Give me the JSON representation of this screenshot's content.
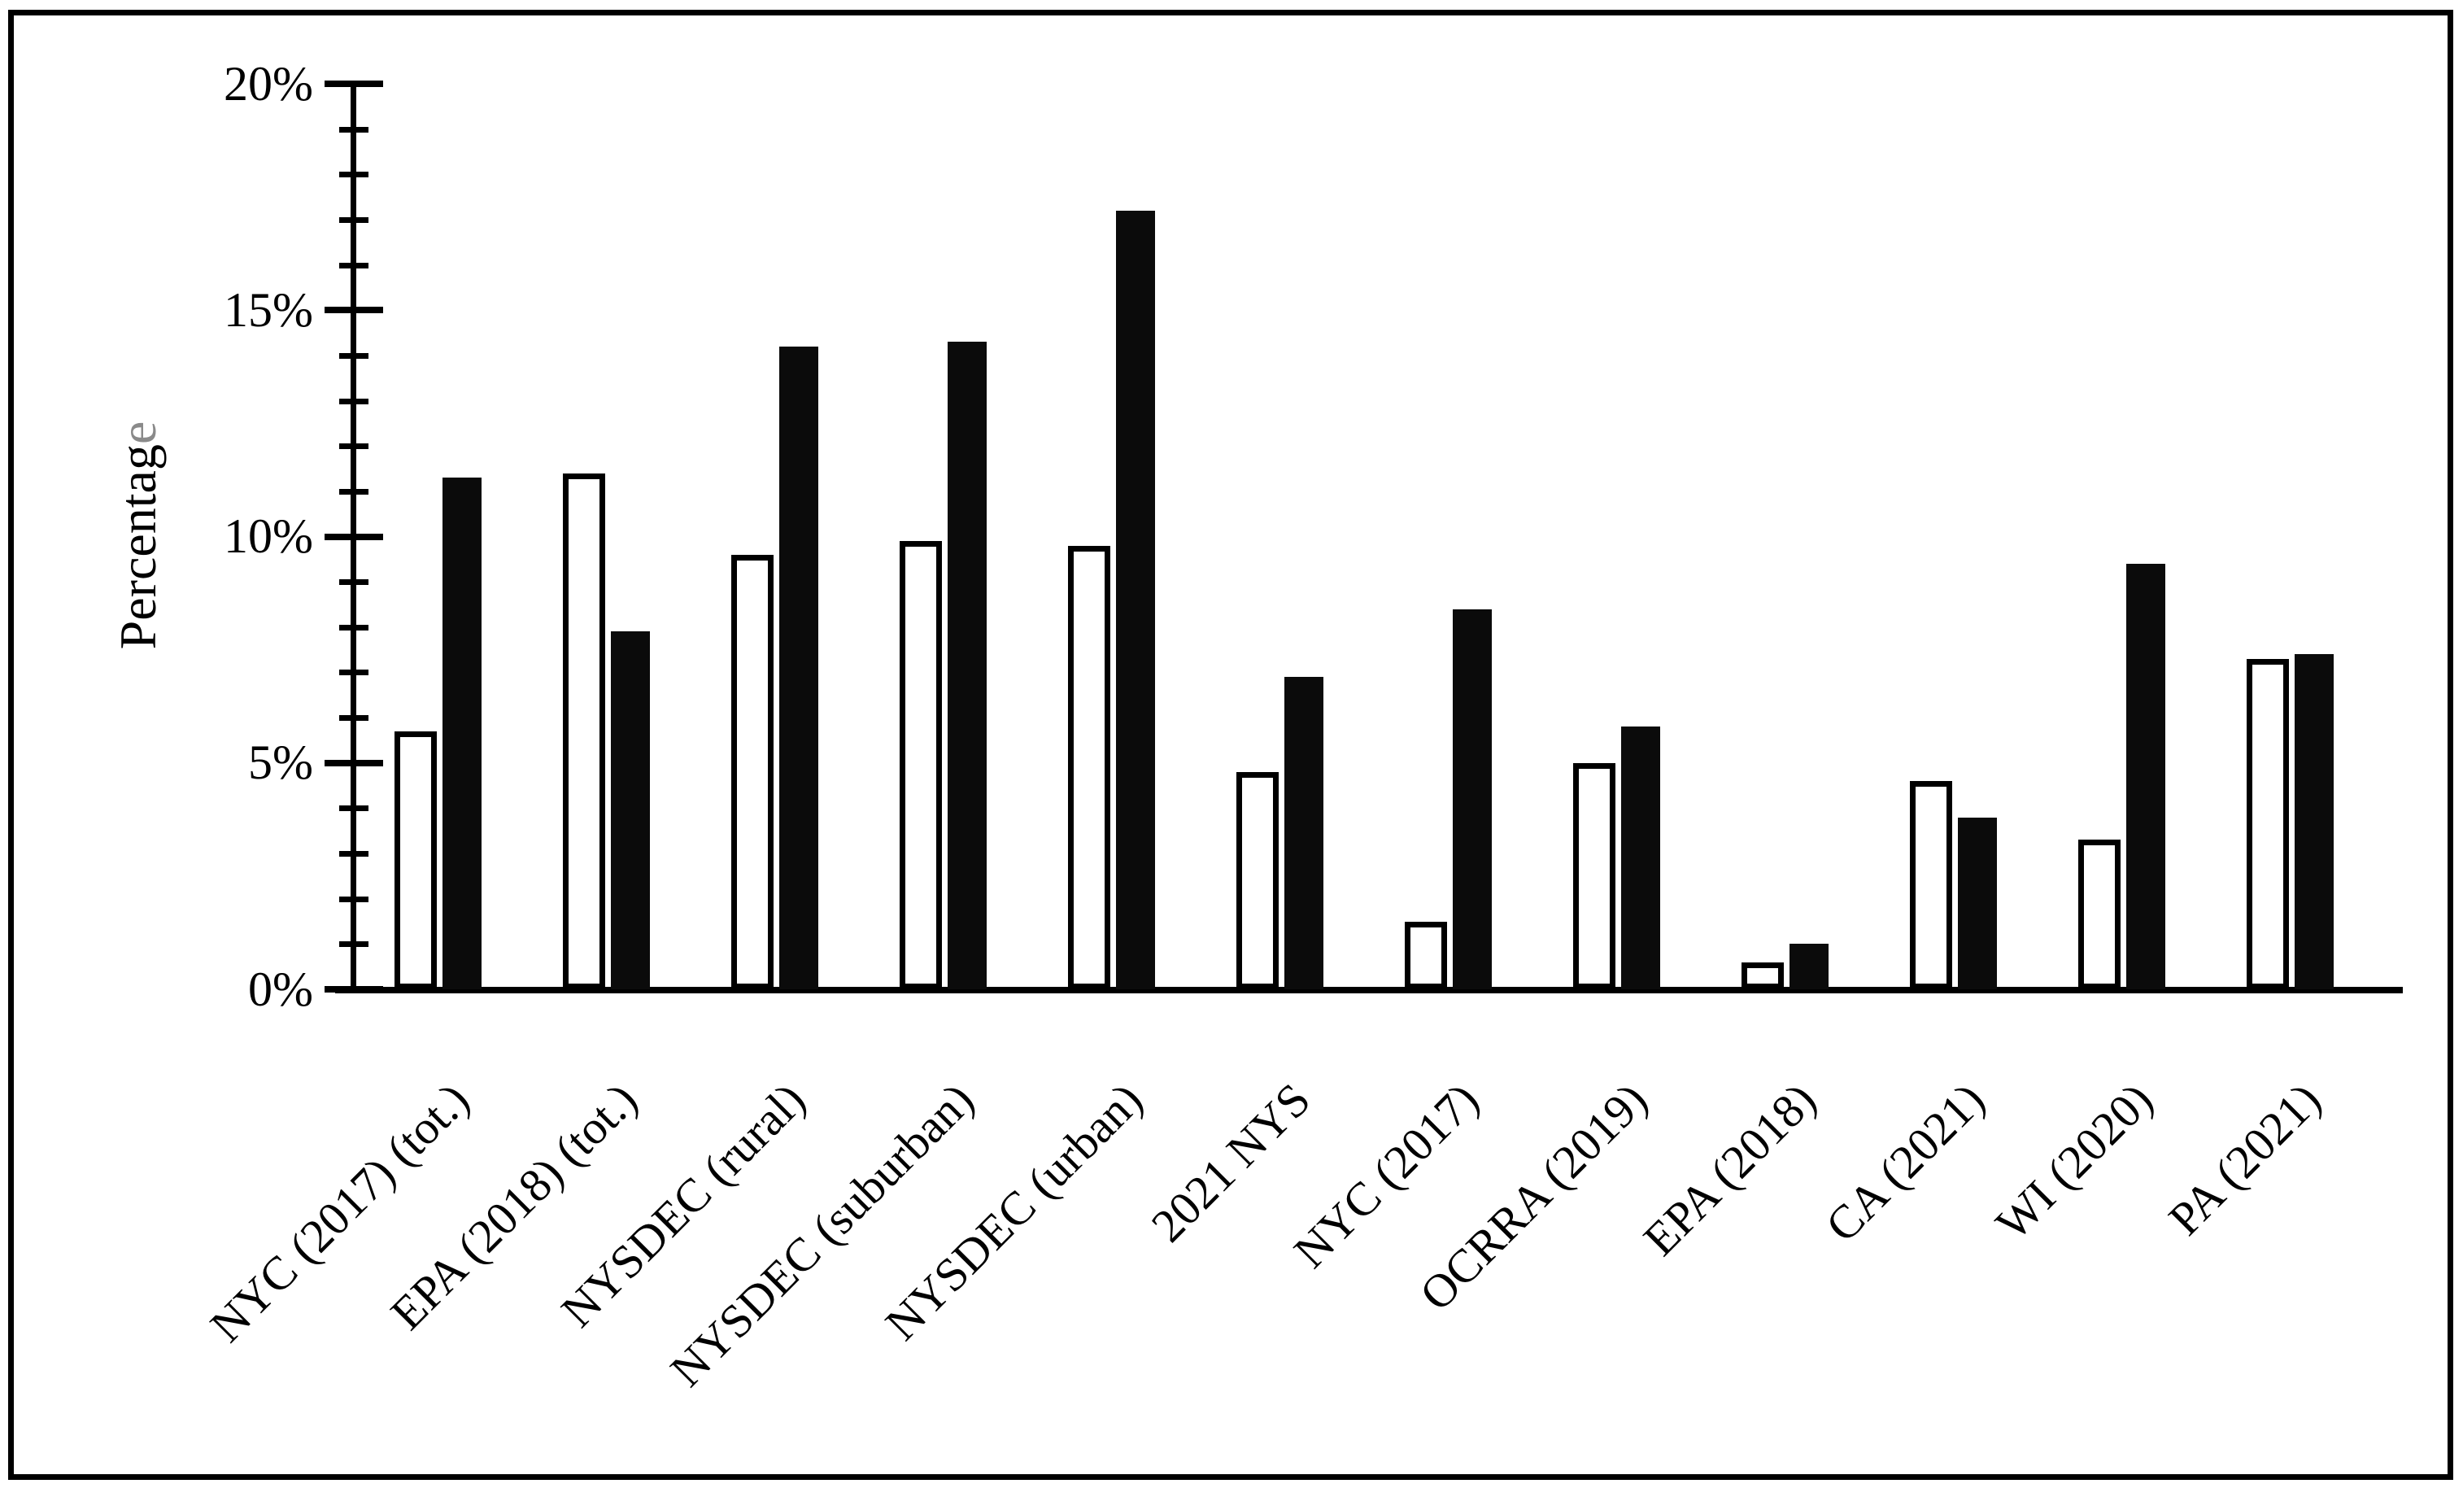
{
  "figure": {
    "background_color": "#ffffff",
    "frame_color": "#000000"
  },
  "chart_data": {
    "type": "bar",
    "title": "",
    "xlabel": "",
    "ylabel": "Percentage",
    "ylabel_parts": {
      "black": "Percentag",
      "gray": "e"
    },
    "ylabel_gray_color": "#8a8a8a",
    "legend": "none",
    "grid": "off",
    "categories": [
      "NYC (2017) (tot.)",
      "EPA (2018) (tot.)",
      "NYSDEC (rural)",
      "NYSDEC (suburban)",
      "NYSDEC (urban)",
      "2021 NYS",
      "NYC (2017)",
      "OCRRA (2019)",
      "EPA (2018)",
      "CA (2021)",
      "WI (2020)",
      "PA (2021)"
    ],
    "series": [
      {
        "name": "white-bars",
        "fill": "#ffffff",
        "stroke": "#000000",
        "values": [
          5.7,
          11.4,
          9.6,
          9.9,
          9.8,
          4.8,
          1.5,
          5.0,
          0.6,
          4.6,
          3.3,
          7.3
        ]
      },
      {
        "name": "black-bars",
        "fill": "#0b0b0b",
        "stroke": "#0b0b0b",
        "values": [
          11.3,
          7.9,
          14.2,
          14.3,
          17.2,
          6.9,
          8.4,
          5.8,
          1.0,
          3.8,
          9.4,
          7.4
        ]
      }
    ],
    "y_axis": {
      "min": 0,
      "max": 20,
      "unit": "%",
      "major_tick_step": 5,
      "minor_tick_step": 1,
      "major_tick_labels": [
        "0%",
        "5%",
        "10%",
        "15%",
        "20%"
      ]
    }
  }
}
